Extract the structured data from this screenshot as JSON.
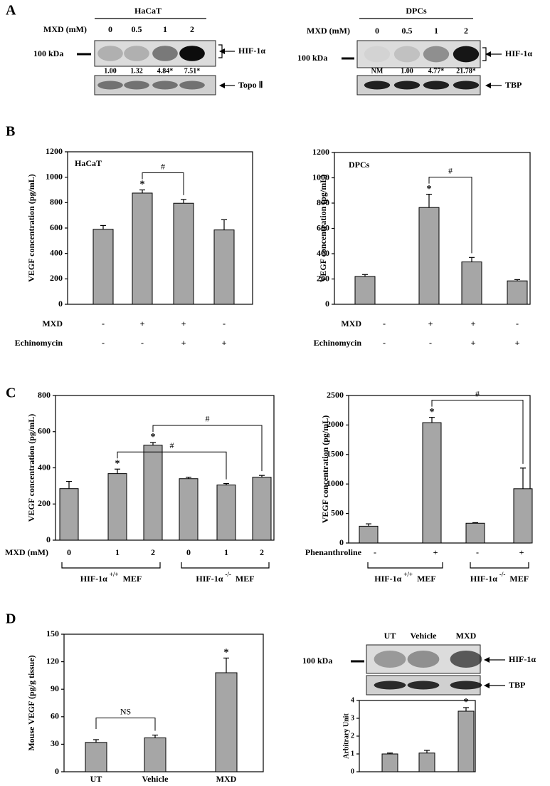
{
  "panels": [
    "A",
    "B",
    "C",
    "D"
  ],
  "blots": [
    {
      "title": "HaCaT",
      "row_label": "MXD (mM)",
      "lanes": [
        "0",
        "0.5",
        "1",
        "2"
      ],
      "marker": "100 kDa",
      "bands": [
        "HIF-1α",
        "Topo Ⅱ"
      ],
      "quantification": [
        "1.00",
        "1.32",
        "4.84*",
        "7.51*"
      ]
    },
    {
      "title": "DPCs",
      "row_label": "MXD (mM)",
      "lanes": [
        "0",
        "0.5",
        "1",
        "2"
      ],
      "marker": "100 kDa",
      "bands": [
        "HIF-1α",
        "TBP"
      ],
      "quantification": [
        "NM",
        "1.00",
        "4.77*",
        "21.78*"
      ]
    },
    {
      "lanes": [
        "UT",
        "Vehicle",
        "MXD"
      ],
      "marker": "100 kDa",
      "bands": [
        "HIF-1α",
        "TBP"
      ]
    }
  ],
  "chart_data": [
    {
      "type": "bar",
      "title": "HaCaT",
      "ylabel": "VEGF concentration (pg/mL)",
      "color": "#a6a6a6",
      "values": [
        590,
        875,
        795,
        585
      ],
      "errors": [
        30,
        25,
        30,
        80
      ],
      "ylim": [
        0,
        1200
      ],
      "yticks": [
        0,
        200,
        400,
        600,
        800,
        1000,
        1200
      ],
      "rows": [
        {
          "name": "MXD",
          "labels": [
            "-",
            "+",
            "+",
            "-"
          ]
        },
        {
          "name": "Echinomycin",
          "labels": [
            "-",
            "-",
            "+",
            "+"
          ]
        }
      ],
      "significance": [
        {
          "index": 1,
          "label": "*"
        }
      ],
      "brackets": [
        {
          "from": 1,
          "to": 2,
          "label": "#"
        }
      ]
    },
    {
      "type": "bar",
      "title": "DPCs",
      "ylabel": "VEGF concentration (pg/mL)",
      "color": "#a6a6a6",
      "values": [
        220,
        765,
        335,
        185
      ],
      "errors": [
        15,
        105,
        35,
        10
      ],
      "ylim": [
        0,
        1200
      ],
      "yticks": [
        0,
        200,
        400,
        600,
        800,
        1000,
        1200
      ],
      "rows": [
        {
          "name": "MXD",
          "labels": [
            "-",
            "+",
            "+",
            "-"
          ]
        },
        {
          "name": "Echinomycin",
          "labels": [
            "-",
            "-",
            "+",
            "+"
          ]
        }
      ],
      "significance": [
        {
          "index": 1,
          "label": "*"
        }
      ],
      "brackets": [
        {
          "from": 1,
          "to": 2,
          "label": "#"
        }
      ]
    },
    {
      "type": "bar",
      "ylabel": "VEGF concentration (pg/mL)",
      "color": "#a6a6a6",
      "values": [
        285,
        368,
        525,
        340,
        305,
        348
      ],
      "errors": [
        40,
        25,
        15,
        8,
        8,
        10
      ],
      "ylim": [
        0,
        800
      ],
      "yticks": [
        0,
        200,
        400,
        600,
        800
      ],
      "rows": [
        {
          "name": "MXD (mM)",
          "labels": [
            "0",
            "1",
            "2",
            "0",
            "1",
            "2"
          ]
        }
      ],
      "groups": [
        {
          "gene": "HIF-1α",
          "genotype": "+/+",
          "cell": "MEF",
          "size": 3
        },
        {
          "gene": "HIF-1α",
          "genotype": "-/-",
          "cell": "MEF",
          "size": 3
        }
      ],
      "significance": [
        {
          "index": 1,
          "label": "*"
        },
        {
          "index": 2,
          "label": "*"
        }
      ],
      "brackets": [
        {
          "from": 1,
          "to": 4,
          "label": "#"
        },
        {
          "from": 2,
          "to": 5,
          "label": "#"
        }
      ]
    },
    {
      "type": "bar",
      "ylabel": "VEGF concentration (pg/mL)",
      "color": "#a6a6a6",
      "values": [
        285,
        2040,
        335,
        920
      ],
      "errors": [
        40,
        90,
        10,
        350
      ],
      "ylim": [
        0,
        2500
      ],
      "yticks": [
        0,
        500,
        1000,
        1500,
        2000,
        2500
      ],
      "rows": [
        {
          "name": "Phenanthroline",
          "labels": [
            "-",
            "+",
            "-",
            "+"
          ]
        }
      ],
      "groups": [
        {
          "gene": "HIF-1α",
          "genotype": "+/+",
          "cell": "MEF",
          "size": 2
        },
        {
          "gene": "HIF-1α",
          "genotype": "-/-",
          "cell": "MEF",
          "size": 2
        }
      ],
      "significance": [
        {
          "index": 1,
          "label": "*"
        }
      ],
      "brackets": [
        {
          "from": 1,
          "to": 3,
          "label": "#"
        }
      ]
    },
    {
      "type": "bar",
      "ylabel": "Mouse VEGF (pg/g tissue)",
      "color": "#a6a6a6",
      "categories": [
        "UT",
        "Vehicle",
        "MXD"
      ],
      "values": [
        32,
        37,
        108
      ],
      "errors": [
        3,
        3,
        16
      ],
      "ylim": [
        0,
        150
      ],
      "yticks": [
        0,
        30,
        60,
        90,
        120,
        150
      ],
      "significance": [
        {
          "index": 2,
          "label": "*"
        }
      ],
      "brackets": [
        {
          "from": 0,
          "to": 1,
          "label": "NS"
        }
      ]
    },
    {
      "type": "bar",
      "ylabel": "Arbitrary Unit",
      "color": "#a6a6a6",
      "values": [
        1.0,
        1.05,
        3.4
      ],
      "errors": [
        0.05,
        0.15,
        0.2
      ],
      "ylim": [
        0,
        4
      ],
      "yticks": [
        0,
        1,
        2,
        3,
        4
      ],
      "significance": [
        {
          "index": 2,
          "label": "*"
        }
      ]
    }
  ]
}
